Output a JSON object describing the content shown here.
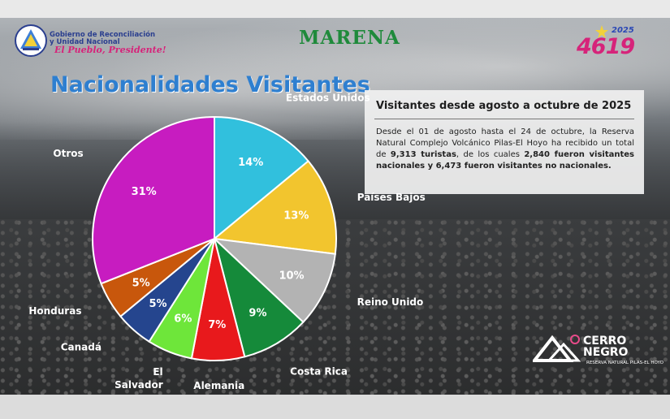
{
  "header": {
    "government_line1": "Gobierno de Reconciliación",
    "government_line2": "y Unidad Nacional",
    "government_slogan": "El Pueblo, Presidente!",
    "agency": "MARENA",
    "anniversary_year": "2025",
    "anniversary_number": "4619"
  },
  "info": {
    "heading": "Visitantes desde agosto a octubre de 2025",
    "text_intro": "Desde el 01 de agosto hasta el 24 de octubre, la Reserva Natural Complejo Volcánico Pilas-El Hoyo ha recibido un total de ",
    "total_visitors": "9,313 turistas",
    "text_mid": ", de los cuales ",
    "national_visitors": "2,840 fueron visitantes nacionales y 6,473 fueron visitantes no nacionales."
  },
  "footer": {
    "logo_title_line1": "CERRO",
    "logo_title_line2": "NEGRO",
    "logo_subtitle": "RESERVA NATURAL PILAS-EL HOYO"
  },
  "chart_data": {
    "type": "pie",
    "title": "Nacionalidades Visitantes",
    "unit": "%",
    "start_angle_deg": 0,
    "direction": "clockwise",
    "categories": [
      "Estados Unidos",
      "Países Bajos",
      "Reino Unido",
      "Costa Rica",
      "Alemania",
      "El Salvador",
      "Canadá",
      "Honduras",
      "Otros"
    ],
    "values": [
      14,
      13,
      10,
      9,
      7,
      6,
      5,
      5,
      31
    ],
    "value_labels": [
      "14%",
      "13%",
      "10%",
      "9%",
      "7%",
      "6%",
      "5%",
      "5%",
      "31%"
    ],
    "category_label_lines": [
      [
        "Estados Unidos"
      ],
      [
        "Países Bajos"
      ],
      [
        "Reino Unido"
      ],
      [
        "Costa Rica"
      ],
      [
        "Alemania"
      ],
      [
        "El",
        "Salvador"
      ],
      [
        "Canadá"
      ],
      [
        "Honduras"
      ],
      [
        "Otros"
      ]
    ],
    "colors": [
      "#31c0dd",
      "#f2c52e",
      "#b3b3b3",
      "#158a3a",
      "#e8191c",
      "#6ee63a",
      "#25458e",
      "#c8570c",
      "#c71cc0"
    ]
  }
}
